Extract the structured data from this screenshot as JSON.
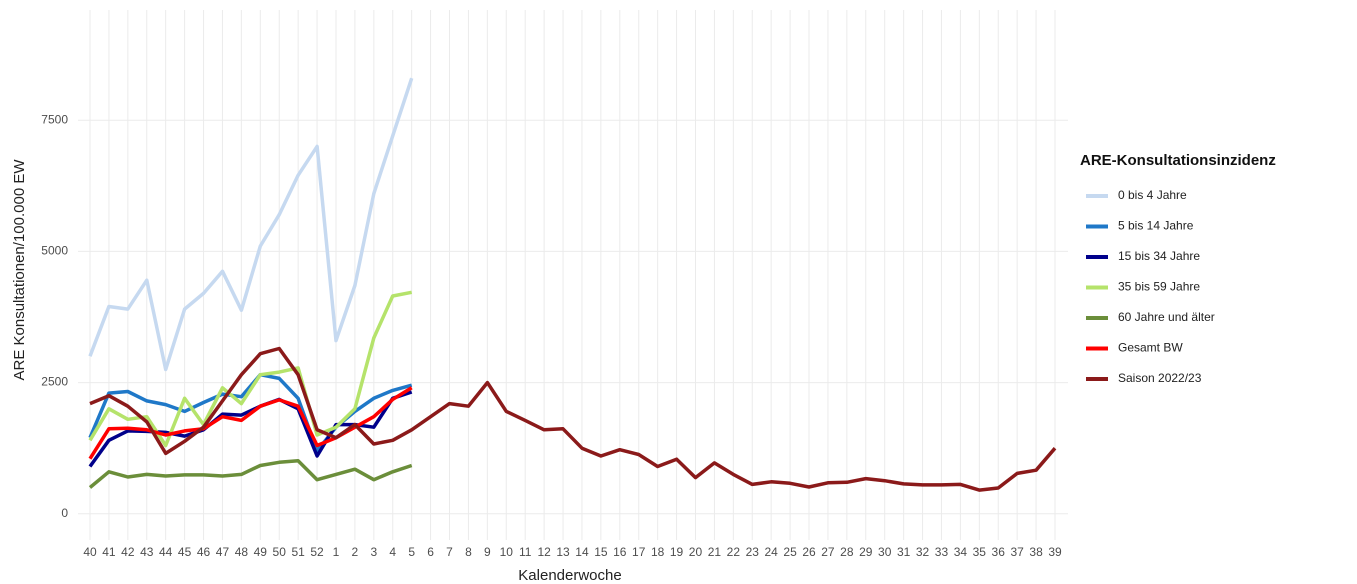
{
  "chart_data": {
    "type": "line",
    "x_label": "Kalenderwoche",
    "y_label": "ARE Konsultationen/100.000 EW",
    "legend_title": "ARE-Konsultationsinzidenz",
    "legend": "right",
    "grid": true,
    "categories": [
      "40",
      "41",
      "42",
      "43",
      "44",
      "45",
      "46",
      "47",
      "48",
      "49",
      "50",
      "51",
      "52",
      "1",
      "2",
      "3",
      "4",
      "5",
      "6",
      "7",
      "8",
      "9",
      "10",
      "11",
      "12",
      "13",
      "14",
      "15",
      "16",
      "17",
      "18",
      "19",
      "20",
      "21",
      "22",
      "23",
      "24",
      "25",
      "26",
      "27",
      "28",
      "29",
      "30",
      "31",
      "32",
      "33",
      "34",
      "35",
      "36",
      "37",
      "38",
      "39"
    ],
    "ylim": [
      -500,
      9600
    ],
    "yticks": [
      0,
      2500,
      5000,
      7500
    ],
    "series": [
      {
        "name": "0 bis 4 Jahre",
        "color": "#c6d9f0",
        "values": [
          3000,
          3950,
          3900,
          4450,
          2750,
          3900,
          4200,
          4620,
          3880,
          5100,
          5700,
          6450,
          7000,
          3300,
          4350,
          6100,
          7200,
          8300,
          null,
          null,
          null,
          null,
          null,
          null,
          null,
          null,
          null,
          null,
          null,
          null,
          null,
          null,
          null,
          null,
          null,
          null,
          null,
          null,
          null,
          null,
          null,
          null,
          null,
          null,
          null,
          null,
          null,
          null,
          null,
          null,
          null,
          null
        ]
      },
      {
        "name": "5 bis 14 Jahre",
        "color": "#1f78c8",
        "values": [
          1450,
          2300,
          2330,
          2150,
          2080,
          1950,
          2120,
          2280,
          2230,
          2650,
          2580,
          2200,
          1200,
          1650,
          1950,
          2200,
          2350,
          2450,
          null,
          null,
          null,
          null,
          null,
          null,
          null,
          null,
          null,
          null,
          null,
          null,
          null,
          null,
          null,
          null,
          null,
          null,
          null,
          null,
          null,
          null,
          null,
          null,
          null,
          null,
          null,
          null,
          null,
          null,
          null,
          null,
          null,
          null
        ]
      },
      {
        "name": "15 bis 34 Jahre",
        "color": "#00008b",
        "values": [
          900,
          1400,
          1580,
          1570,
          1550,
          1480,
          1600,
          1900,
          1880,
          2050,
          2180,
          2000,
          1100,
          1700,
          1700,
          1650,
          2200,
          2320,
          null,
          null,
          null,
          null,
          null,
          null,
          null,
          null,
          null,
          null,
          null,
          null,
          null,
          null,
          null,
          null,
          null,
          null,
          null,
          null,
          null,
          null,
          null,
          null,
          null,
          null,
          null,
          null,
          null,
          null,
          null,
          null,
          null,
          null
        ]
      },
      {
        "name": "35 bis 59 Jahre",
        "color": "#b5e36b",
        "values": [
          1400,
          2000,
          1800,
          1850,
          1300,
          2200,
          1700,
          2400,
          2100,
          2650,
          2700,
          2780,
          1500,
          1650,
          2000,
          3350,
          4150,
          4220,
          null,
          null,
          null,
          null,
          null,
          null,
          null,
          null,
          null,
          null,
          null,
          null,
          null,
          null,
          null,
          null,
          null,
          null,
          null,
          null,
          null,
          null,
          null,
          null,
          null,
          null,
          null,
          null,
          null,
          null,
          null,
          null,
          null,
          null
        ]
      },
      {
        "name": "60 Jahre und älter",
        "color": "#6b8e3a",
        "values": [
          500,
          800,
          700,
          750,
          720,
          740,
          740,
          720,
          750,
          920,
          980,
          1010,
          650,
          750,
          850,
          650,
          800,
          920,
          null,
          null,
          null,
          null,
          null,
          null,
          null,
          null,
          null,
          null,
          null,
          null,
          null,
          null,
          null,
          null,
          null,
          null,
          null,
          null,
          null,
          null,
          null,
          null,
          null,
          null,
          null,
          null,
          null,
          null,
          null,
          null,
          null,
          null
        ]
      },
      {
        "name": "Gesamt BW",
        "color": "#ff0000",
        "values": [
          1050,
          1620,
          1630,
          1600,
          1500,
          1580,
          1620,
          1850,
          1780,
          2050,
          2170,
          2050,
          1300,
          1450,
          1650,
          1850,
          2180,
          2400,
          null,
          null,
          null,
          null,
          null,
          null,
          null,
          null,
          null,
          null,
          null,
          null,
          null,
          null,
          null,
          null,
          null,
          null,
          null,
          null,
          null,
          null,
          null,
          null,
          null,
          null,
          null,
          null,
          null,
          null,
          null,
          null,
          null,
          null
        ]
      },
      {
        "name": "Saison 2022/23",
        "color": "#8b1a1a",
        "values": [
          2100,
          2250,
          2050,
          1750,
          1150,
          1380,
          1650,
          2150,
          2650,
          3050,
          3150,
          2650,
          1600,
          1450,
          1700,
          1330,
          1400,
          1600,
          1850,
          2100,
          2050,
          2500,
          1950,
          1780,
          1600,
          1620,
          1250,
          1100,
          1220,
          1130,
          900,
          1040,
          690,
          970,
          750,
          560,
          610,
          580,
          510,
          590,
          600,
          670,
          630,
          570,
          550,
          550,
          560,
          450,
          490,
          770,
          830,
          1250
        ]
      }
    ]
  }
}
